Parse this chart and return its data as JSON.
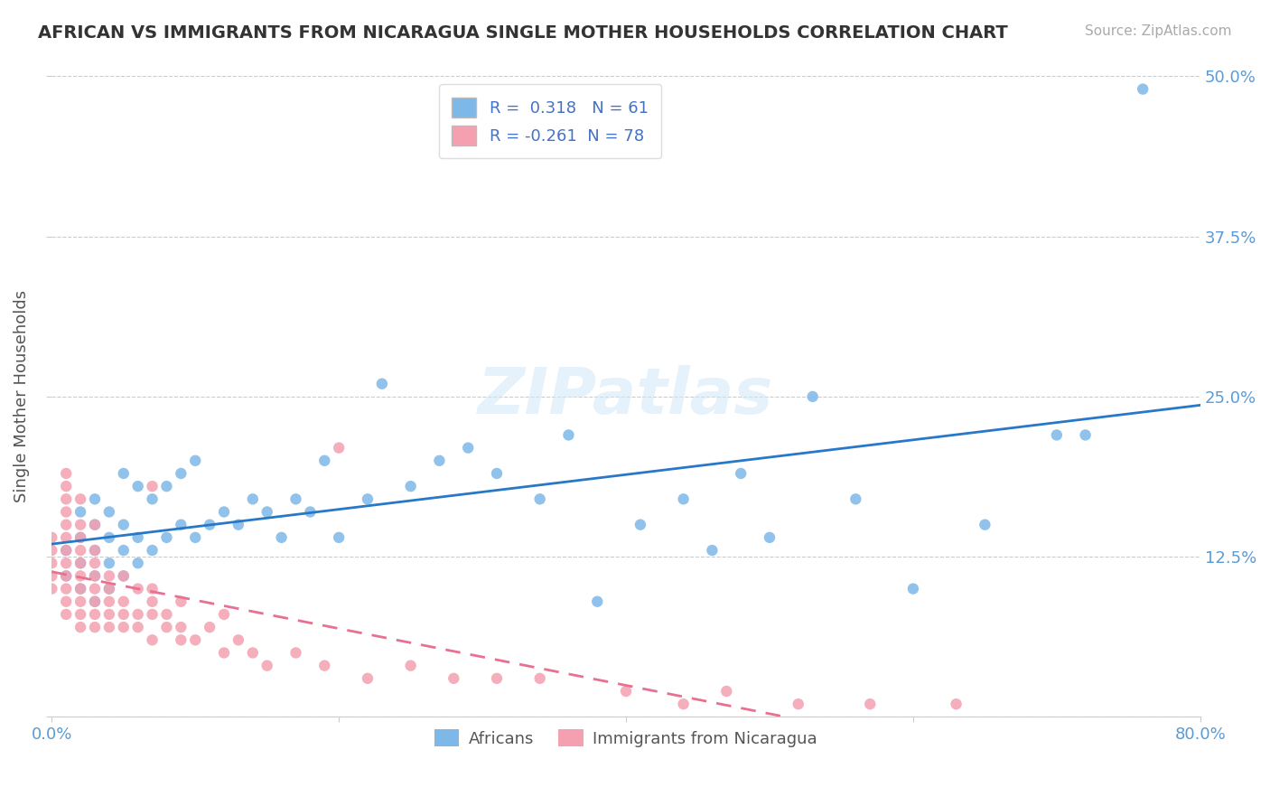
{
  "title": "AFRICAN VS IMMIGRANTS FROM NICARAGUA SINGLE MOTHER HOUSEHOLDS CORRELATION CHART",
  "source": "Source: ZipAtlas.com",
  "ylabel": "Single Mother Households",
  "xlim": [
    0.0,
    0.8
  ],
  "ylim": [
    0.0,
    0.5
  ],
  "R_african": 0.318,
  "N_african": 61,
  "R_nicaragua": -0.261,
  "N_nicaragua": 78,
  "color_african": "#7eb8e8",
  "color_nicaragua": "#f4a0b0",
  "trendline_african_color": "#2878c8",
  "trendline_nicaragua_color": "#e87090",
  "background_color": "#ffffff",
  "grid_color": "#cccccc",
  "title_color": "#333333",
  "tick_color": "#5b9bd5",
  "african_x": [
    0.01,
    0.01,
    0.02,
    0.02,
    0.02,
    0.02,
    0.03,
    0.03,
    0.03,
    0.03,
    0.03,
    0.04,
    0.04,
    0.04,
    0.04,
    0.05,
    0.05,
    0.05,
    0.05,
    0.06,
    0.06,
    0.06,
    0.07,
    0.07,
    0.08,
    0.08,
    0.09,
    0.09,
    0.1,
    0.1,
    0.11,
    0.12,
    0.13,
    0.14,
    0.15,
    0.16,
    0.17,
    0.18,
    0.19,
    0.2,
    0.22,
    0.23,
    0.25,
    0.27,
    0.29,
    0.31,
    0.34,
    0.36,
    0.38,
    0.41,
    0.44,
    0.46,
    0.48,
    0.5,
    0.53,
    0.56,
    0.6,
    0.65,
    0.7,
    0.72,
    0.76
  ],
  "african_y": [
    0.11,
    0.13,
    0.1,
    0.12,
    0.14,
    0.16,
    0.09,
    0.11,
    0.13,
    0.15,
    0.17,
    0.1,
    0.12,
    0.14,
    0.16,
    0.11,
    0.13,
    0.15,
    0.19,
    0.12,
    0.14,
    0.18,
    0.13,
    0.17,
    0.14,
    0.18,
    0.15,
    0.19,
    0.14,
    0.2,
    0.15,
    0.16,
    0.15,
    0.17,
    0.16,
    0.14,
    0.17,
    0.16,
    0.2,
    0.14,
    0.17,
    0.26,
    0.18,
    0.2,
    0.21,
    0.19,
    0.17,
    0.22,
    0.09,
    0.15,
    0.17,
    0.13,
    0.19,
    0.14,
    0.25,
    0.17,
    0.1,
    0.15,
    0.22,
    0.22,
    0.49
  ],
  "nicaragua_x": [
    0.0,
    0.0,
    0.0,
    0.0,
    0.0,
    0.01,
    0.01,
    0.01,
    0.01,
    0.01,
    0.01,
    0.01,
    0.01,
    0.01,
    0.01,
    0.01,
    0.01,
    0.02,
    0.02,
    0.02,
    0.02,
    0.02,
    0.02,
    0.02,
    0.02,
    0.02,
    0.02,
    0.03,
    0.03,
    0.03,
    0.03,
    0.03,
    0.03,
    0.03,
    0.03,
    0.04,
    0.04,
    0.04,
    0.04,
    0.04,
    0.05,
    0.05,
    0.05,
    0.05,
    0.06,
    0.06,
    0.06,
    0.07,
    0.07,
    0.07,
    0.07,
    0.07,
    0.08,
    0.08,
    0.09,
    0.09,
    0.09,
    0.1,
    0.11,
    0.12,
    0.12,
    0.13,
    0.14,
    0.15,
    0.17,
    0.19,
    0.2,
    0.22,
    0.25,
    0.28,
    0.31,
    0.34,
    0.4,
    0.44,
    0.47,
    0.52,
    0.57,
    0.63
  ],
  "nicaragua_y": [
    0.1,
    0.11,
    0.12,
    0.13,
    0.14,
    0.08,
    0.09,
    0.1,
    0.11,
    0.12,
    0.13,
    0.14,
    0.15,
    0.16,
    0.17,
    0.18,
    0.19,
    0.07,
    0.08,
    0.09,
    0.1,
    0.11,
    0.12,
    0.13,
    0.14,
    0.15,
    0.17,
    0.07,
    0.08,
    0.09,
    0.1,
    0.11,
    0.12,
    0.13,
    0.15,
    0.07,
    0.08,
    0.09,
    0.1,
    0.11,
    0.07,
    0.08,
    0.09,
    0.11,
    0.07,
    0.08,
    0.1,
    0.06,
    0.08,
    0.09,
    0.1,
    0.18,
    0.07,
    0.08,
    0.06,
    0.07,
    0.09,
    0.06,
    0.07,
    0.05,
    0.08,
    0.06,
    0.05,
    0.04,
    0.05,
    0.04,
    0.21,
    0.03,
    0.04,
    0.03,
    0.03,
    0.03,
    0.02,
    0.01,
    0.02,
    0.01,
    0.01,
    0.01
  ]
}
